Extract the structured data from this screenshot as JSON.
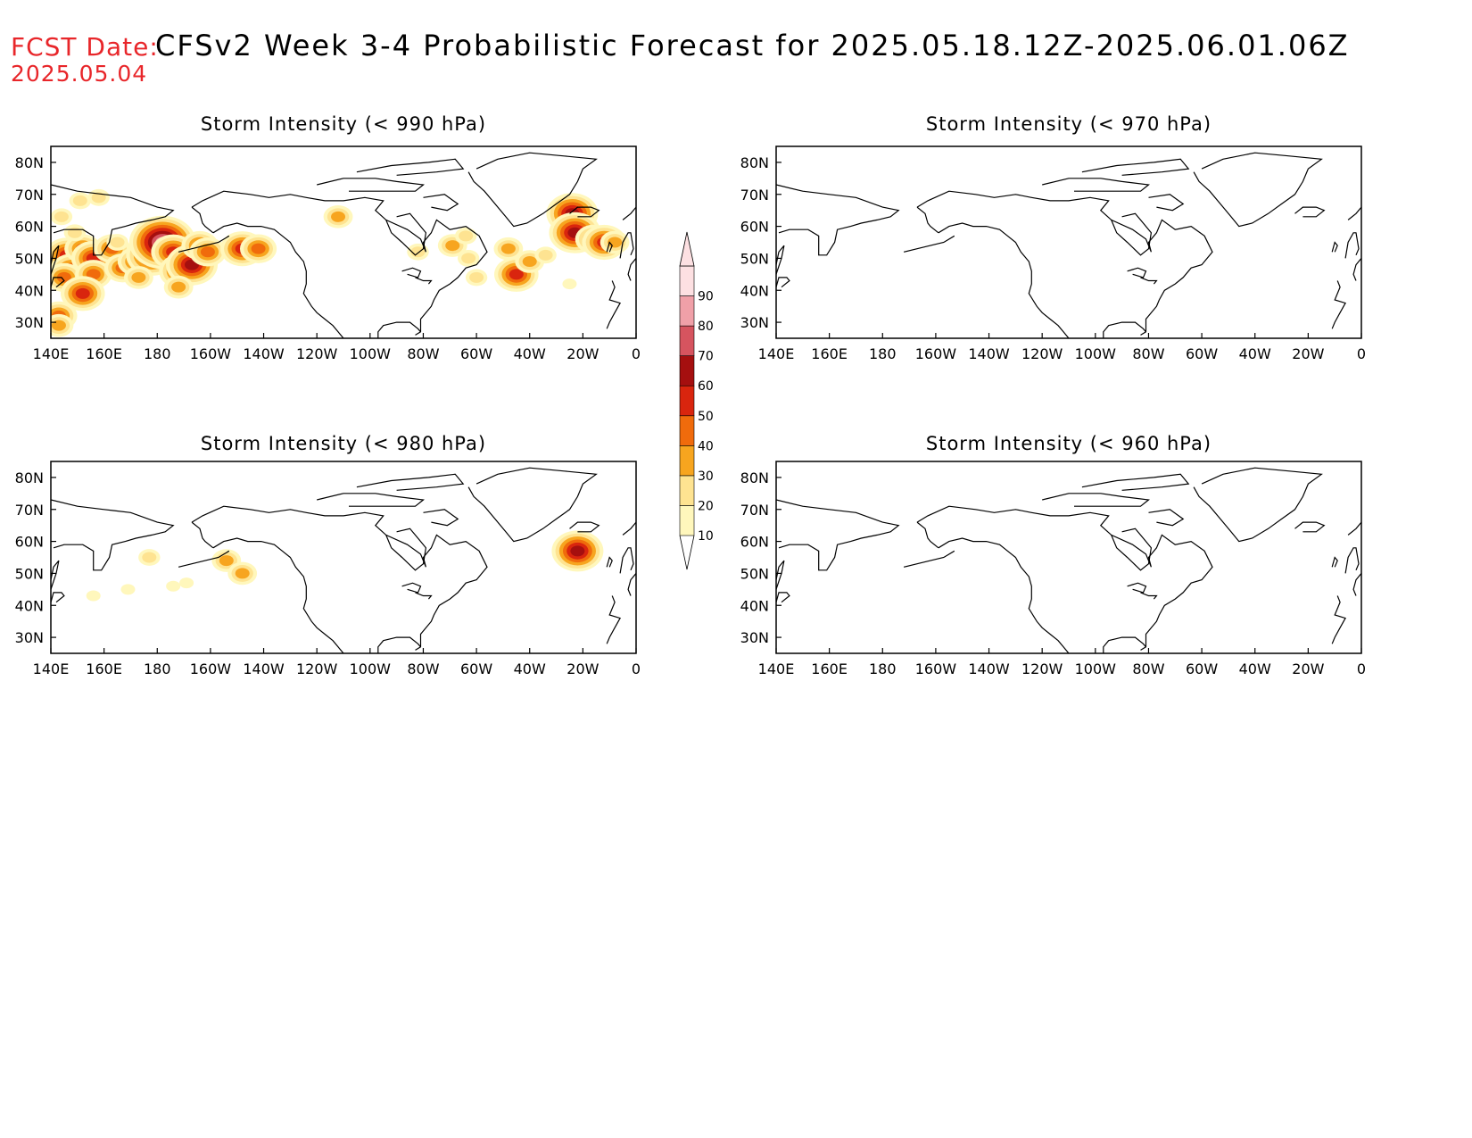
{
  "header": {
    "fcst_label": "FCST Date:",
    "fcst_date": "2025.05.04",
    "title": "CFSv2 Week 3-4 Probabilistic Forecast for 2025.05.18.12Z-2025.06.01.06Z"
  },
  "colors": {
    "coast": "#000000",
    "label": "#e8262a",
    "bins": [
      "#fff7bc",
      "#fee391",
      "#f7a51f",
      "#f06b0c",
      "#d9250e",
      "#a50f0f",
      "#d6545f",
      "#f0a0a8",
      "#fde0e2"
    ]
  },
  "colorbar": {
    "labels": [
      "10",
      "20",
      "30",
      "40",
      "50",
      "60",
      "70",
      "80",
      "90"
    ]
  },
  "chart_data": [
    {
      "type": "heatmap",
      "title": "Storm Intensity (< 990 hPa)",
      "xticks": [
        "140E",
        "160E",
        "180",
        "160W",
        "140W",
        "120W",
        "100W",
        "80W",
        "60W",
        "40W",
        "20W",
        "0"
      ],
      "yticks": [
        "80N",
        "70N",
        "60N",
        "50N",
        "40N",
        "30N"
      ],
      "xlim": [
        140,
        360
      ],
      "ylim": [
        25,
        85
      ],
      "blobs": [
        {
          "lon": 146,
          "lat": 51,
          "v": 50
        },
        {
          "lon": 148,
          "lat": 46,
          "v": 50
        },
        {
          "lon": 145,
          "lat": 44,
          "v": 40
        },
        {
          "lon": 152,
          "lat": 53,
          "v": 40
        },
        {
          "lon": 156,
          "lat": 50,
          "v": 55
        },
        {
          "lon": 156,
          "lat": 45,
          "v": 40
        },
        {
          "lon": 152,
          "lat": 39,
          "v": 55
        },
        {
          "lon": 143,
          "lat": 32,
          "v": 40
        },
        {
          "lon": 143,
          "lat": 29,
          "v": 30
        },
        {
          "lon": 163,
          "lat": 53,
          "v": 40
        },
        {
          "lon": 167,
          "lat": 47,
          "v": 40
        },
        {
          "lon": 172,
          "lat": 49,
          "v": 45
        },
        {
          "lon": 178,
          "lat": 51,
          "v": 65
        },
        {
          "lon": 182,
          "lat": 55,
          "v": 80
        },
        {
          "lon": 186,
          "lat": 52,
          "v": 55
        },
        {
          "lon": 189,
          "lat": 46,
          "v": 55
        },
        {
          "lon": 193,
          "lat": 48,
          "v": 65
        },
        {
          "lon": 196,
          "lat": 54,
          "v": 45
        },
        {
          "lon": 199,
          "lat": 52,
          "v": 40
        },
        {
          "lon": 173,
          "lat": 44,
          "v": 30
        },
        {
          "lon": 188,
          "lat": 41,
          "v": 30
        },
        {
          "lon": 149,
          "lat": 58,
          "v": 25
        },
        {
          "lon": 151,
          "lat": 68,
          "v": 20
        },
        {
          "lon": 158,
          "lat": 69,
          "v": 20
        },
        {
          "lon": 144,
          "lat": 63,
          "v": 20
        },
        {
          "lon": 165,
          "lat": 55,
          "v": 25
        },
        {
          "lon": 212,
          "lat": 53,
          "v": 55
        },
        {
          "lon": 218,
          "lat": 53,
          "v": 40
        },
        {
          "lon": 248,
          "lat": 63,
          "v": 30
        },
        {
          "lon": 278,
          "lat": 52,
          "v": 25
        },
        {
          "lon": 291,
          "lat": 54,
          "v": 35
        },
        {
          "lon": 296,
          "lat": 57,
          "v": 25
        },
        {
          "lon": 300,
          "lat": 44,
          "v": 20
        },
        {
          "lon": 297,
          "lat": 50,
          "v": 20
        },
        {
          "lon": 312,
          "lat": 53,
          "v": 30
        },
        {
          "lon": 315,
          "lat": 45,
          "v": 55
        },
        {
          "lon": 320,
          "lat": 49,
          "v": 35
        },
        {
          "lon": 326,
          "lat": 51,
          "v": 25
        },
        {
          "lon": 336,
          "lat": 64,
          "v": 65
        },
        {
          "lon": 337,
          "lat": 58,
          "v": 60
        },
        {
          "lon": 344,
          "lat": 56,
          "v": 45
        },
        {
          "lon": 348,
          "lat": 55,
          "v": 55
        },
        {
          "lon": 352,
          "lat": 55,
          "v": 30
        },
        {
          "lon": 335,
          "lat": 42,
          "v": 15
        }
      ]
    },
    {
      "type": "heatmap",
      "title": "Storm Intensity (< 970 hPa)",
      "xticks": [
        "140E",
        "160E",
        "180",
        "160W",
        "140W",
        "120W",
        "100W",
        "80W",
        "60W",
        "40W",
        "20W",
        "0"
      ],
      "yticks": [
        "80N",
        "70N",
        "60N",
        "50N",
        "40N",
        "30N"
      ],
      "xlim": [
        140,
        360
      ],
      "ylim": [
        25,
        85
      ],
      "blobs": []
    },
    {
      "type": "heatmap",
      "title": "Storm Intensity (< 980 hPa)",
      "xticks": [
        "140E",
        "160E",
        "180",
        "160W",
        "140W",
        "120W",
        "100W",
        "80W",
        "60W",
        "40W",
        "20W",
        "0"
      ],
      "yticks": [
        "80N",
        "70N",
        "60N",
        "50N",
        "40N",
        "30N"
      ],
      "xlim": [
        140,
        360
      ],
      "ylim": [
        25,
        85
      ],
      "blobs": [
        {
          "lon": 177,
          "lat": 55,
          "v": 20
        },
        {
          "lon": 169,
          "lat": 45,
          "v": 15
        },
        {
          "lon": 186,
          "lat": 46,
          "v": 15
        },
        {
          "lon": 191,
          "lat": 47,
          "v": 15
        },
        {
          "lon": 206,
          "lat": 54,
          "v": 35
        },
        {
          "lon": 212,
          "lat": 50,
          "v": 30
        },
        {
          "lon": 156,
          "lat": 43,
          "v": 12
        },
        {
          "lon": 338,
          "lat": 57,
          "v": 65
        }
      ]
    },
    {
      "type": "heatmap",
      "title": "Storm Intensity (< 960 hPa)",
      "xticks": [
        "140E",
        "160E",
        "180",
        "160W",
        "140W",
        "120W",
        "100W",
        "80W",
        "60W",
        "40W",
        "20W",
        "0"
      ],
      "yticks": [
        "80N",
        "70N",
        "60N",
        "50N",
        "40N",
        "30N"
      ],
      "xlim": [
        140,
        360
      ],
      "ylim": [
        25,
        85
      ],
      "blobs": []
    }
  ]
}
